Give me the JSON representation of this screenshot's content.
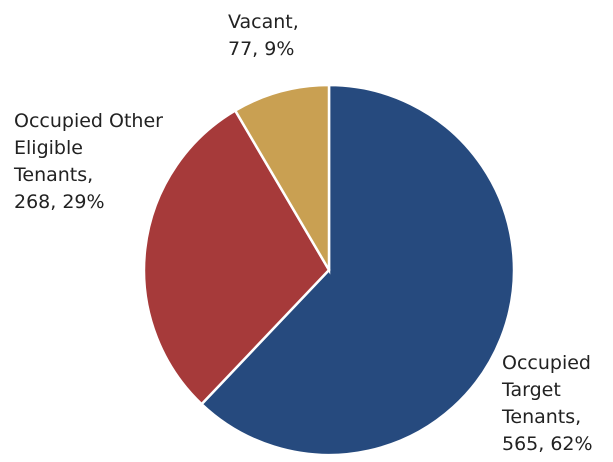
{
  "chart_data": {
    "type": "pie",
    "categories": [
      "Occupied Target Tenants,",
      "Occupied Other Eligible Tenants,",
      "Vacant,"
    ],
    "values": [
      565,
      268,
      77
    ],
    "value_labels": [
      "565, 62%",
      "268, 29%",
      "77, 9%"
    ],
    "colors": [
      "#264a7e",
      "#a63a3a",
      "#c9a052"
    ]
  }
}
